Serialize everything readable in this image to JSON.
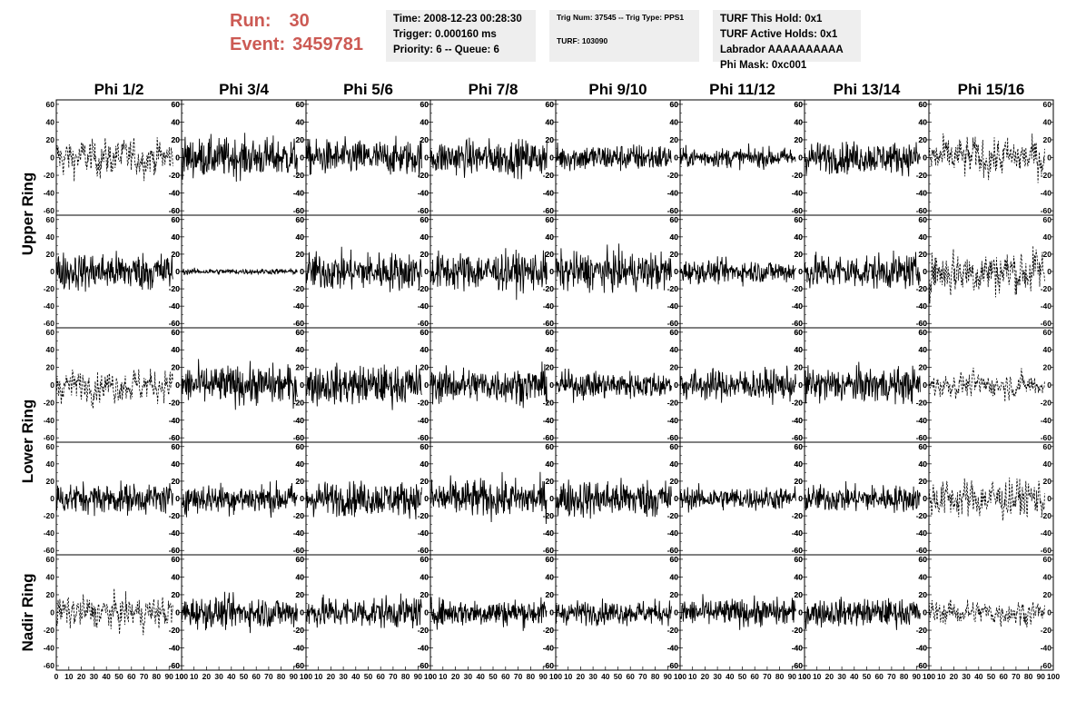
{
  "header": {
    "run_label": "Run:",
    "run_value": "30",
    "event_label": "Event:",
    "event_value": "3459781",
    "time_line": "Time: 2008-12-23 00:28:30",
    "trigger_line": "Trigger: 0.000160 ms",
    "priority_line": "Priority: 6 -- Queue: 6",
    "trig_line": "Trig Num: 37545 -- Trig Type: PPS1",
    "turf_line": "TURF: 103090",
    "turf_hold": "TURF This Hold: 0x1",
    "turf_active": "TURF Active Holds: 0x1",
    "labrador": "Labrador AAAAAAAAAA",
    "phi_mask": "Phi Mask: 0xc001",
    "highlight_color": "#cc5a54"
  },
  "chart_data": {
    "type": "line",
    "title": "",
    "columns": [
      "Phi 1/2",
      "Phi 3/4",
      "Phi 5/6",
      "Phi 7/8",
      "Phi 9/10",
      "Phi 11/12",
      "Phi 13/14",
      "Phi 15/16"
    ],
    "ring_labels": [
      "Upper Ring",
      "Lower Ring",
      "Nadir Ring"
    ],
    "ylim": [
      -65,
      65
    ],
    "xlim": [
      0,
      100
    ],
    "y_tick_labels": [
      "60",
      "40",
      "20",
      "0",
      "-20",
      "-40",
      "-60"
    ],
    "x_tick_labels": [
      "0",
      "10",
      "20",
      "30",
      "40",
      "50",
      "60",
      "70",
      "80",
      "90",
      "100"
    ],
    "series_note": "",
    "amplitude_estimates": [
      [
        18,
        20,
        18,
        18,
        14,
        10,
        16,
        20
      ],
      [
        20,
        3,
        20,
        20,
        20,
        12,
        18,
        24
      ],
      [
        16,
        20,
        20,
        18,
        14,
        16,
        18,
        12
      ],
      [
        16,
        16,
        18,
        20,
        20,
        12,
        14,
        20
      ],
      [
        16,
        16,
        16,
        14,
        12,
        14,
        14,
        12
      ]
    ],
    "dashed_panels": [
      [
        true,
        false,
        false,
        false,
        false,
        false,
        false,
        true
      ],
      [
        false,
        false,
        false,
        false,
        false,
        false,
        false,
        true
      ],
      [
        true,
        false,
        false,
        false,
        false,
        false,
        false,
        true
      ],
      [
        false,
        false,
        false,
        false,
        false,
        false,
        false,
        true
      ],
      [
        true,
        false,
        false,
        false,
        false,
        false,
        false,
        true
      ]
    ]
  }
}
